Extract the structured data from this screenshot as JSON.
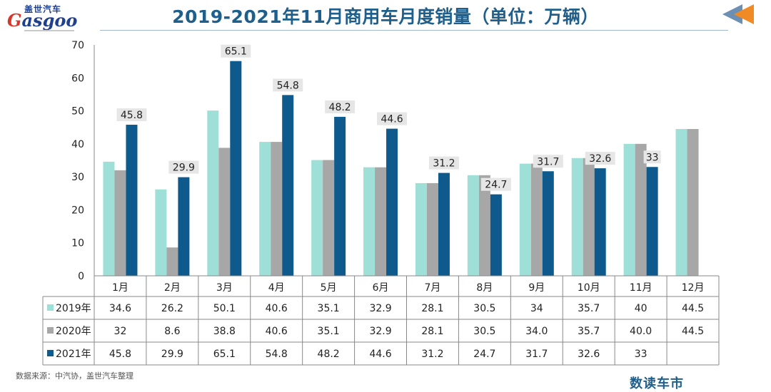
{
  "logo": {
    "cn": "盖世汽车",
    "en_first": "G",
    "en_rest": "asgoo"
  },
  "header": {
    "title": "2019-2021年11月商用车月度销量（单位：万辆）"
  },
  "footer": {
    "source": "数据来源：中汽协，盖世汽车整理",
    "brand": "数读车市"
  },
  "colors": {
    "s2019": "#9ee0d8",
    "s2020": "#a7a7a7",
    "s2021": "#0f5a8c",
    "title": "#1f5f8b"
  },
  "chart_data": {
    "type": "bar",
    "title": "2019-2021年11月商用车月度销量（单位：万辆）",
    "ylim": [
      0,
      70
    ],
    "yticks": [
      0,
      10,
      20,
      30,
      40,
      50,
      60,
      70
    ],
    "categories": [
      "1月",
      "2月",
      "3月",
      "4月",
      "5月",
      "6月",
      "7月",
      "8月",
      "9月",
      "10月",
      "11月",
      "12月"
    ],
    "series": [
      {
        "name": "2019年",
        "color": "#9ee0d8",
        "values": [
          34.6,
          26.2,
          50.1,
          40.6,
          35.1,
          32.9,
          28.1,
          30.5,
          34,
          35.7,
          40,
          44.5
        ],
        "table": [
          "34.6",
          "26.2",
          "50.1",
          "40.6",
          "35.1",
          "32.9",
          "28.1",
          "30.5",
          "34",
          "35.7",
          "40",
          "44.5"
        ]
      },
      {
        "name": "2020年",
        "color": "#a7a7a7",
        "values": [
          32,
          8.6,
          38.8,
          40.6,
          35.1,
          32.9,
          28.1,
          30.5,
          34.0,
          35.7,
          40.0,
          44.5
        ],
        "table": [
          "32",
          "8.6",
          "38.8",
          "40.6",
          "35.1",
          "32.9",
          "28.1",
          "30.5",
          "34.0",
          "35.7",
          "40.0",
          "44.5"
        ]
      },
      {
        "name": "2021年",
        "color": "#0f5a8c",
        "values": [
          45.8,
          29.9,
          65.1,
          54.8,
          48.2,
          44.6,
          31.2,
          24.7,
          31.7,
          32.6,
          33,
          null
        ],
        "table": [
          "45.8",
          "29.9",
          "65.1",
          "54.8",
          "48.2",
          "44.6",
          "31.2",
          "24.7",
          "31.7",
          "32.6",
          "33",
          ""
        ],
        "labels": [
          "45.8",
          "29.9",
          "65.1",
          "54.8",
          "48.2",
          "44.6",
          "31.2",
          "24.7",
          "31.7",
          "32.6",
          "33",
          ""
        ]
      }
    ],
    "grid": false,
    "legend": "data-table"
  }
}
